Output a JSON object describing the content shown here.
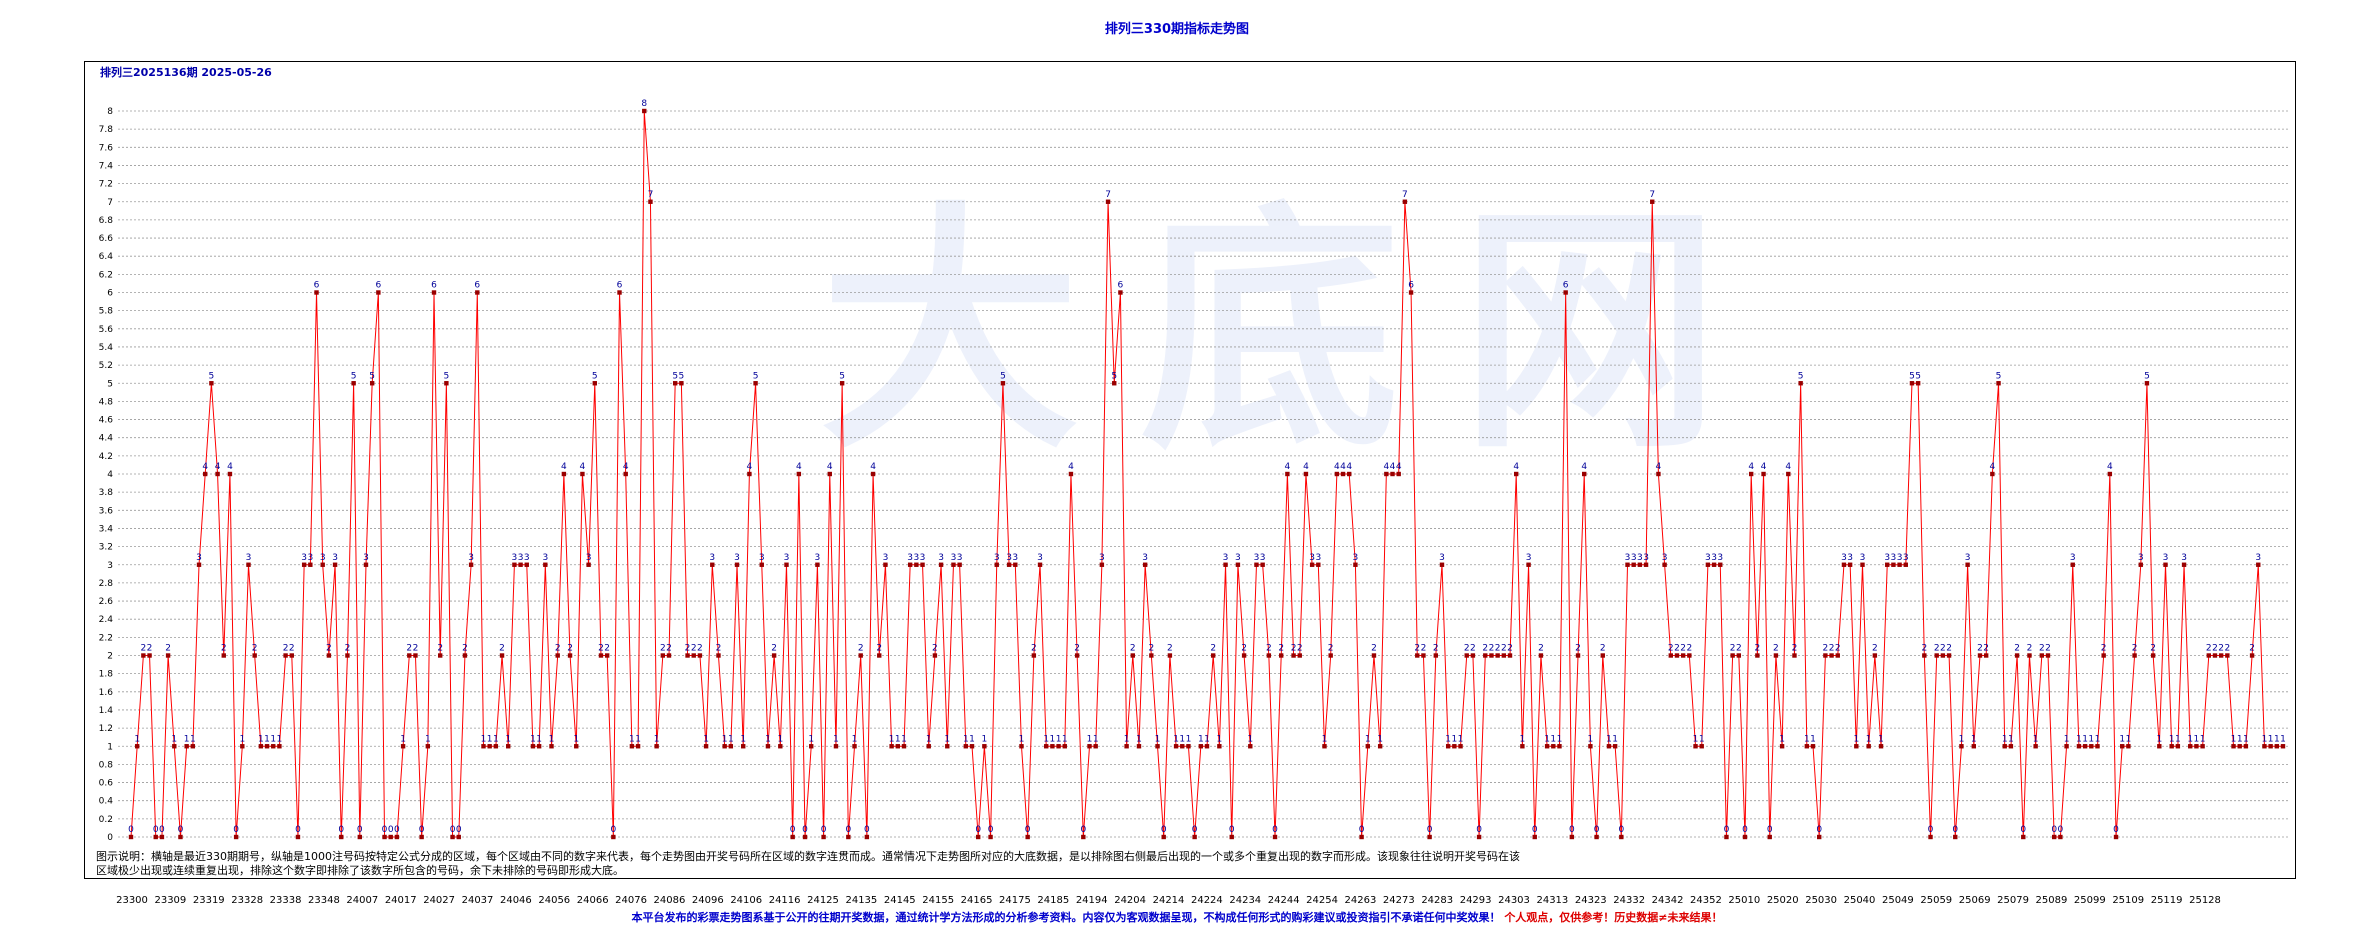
{
  "page": {
    "title": "排列三330期指标走势图",
    "subtitle": "排列三2025136期 2025-05-26",
    "description": "图示说明：横轴是最近330期期号，纵轴是1000注号码按特定公式分成的区域，每个区域由不同的数字来代表，每个走势图由开奖号码所在区域的数字连贯而成。通常情况下走势图所对应的大底数据，是以排除图右侧最后出现的一个或多个重复出现的数字而形成。该现象往往说明开奖号码在该区域极少出现或连续重复出现，排除这个数字即排除了该数字所包含的号码，余下未排除的号码即形成大底。",
    "disclaimer": "本平台发布的彩票走势图系基于公开的往期开奖数据，通过统计学方法形成的分析参考资料。内容仅为客观数据呈现，不构成任何形式的购彩建议或投资指引不承诺任何中奖效果！",
    "disclaimer_warning": "个人观点，仅供参考！历史数据≠未来结果！",
    "watermark": "大底网",
    "colors": {
      "line": "#ff0000",
      "point": "#990000",
      "value_label": "#000099",
      "grid": "#9a9a9a",
      "title": "#0000cc",
      "watermark": "#dfe6f8"
    }
  },
  "chart_data": {
    "type": "line",
    "title": "排列三330期指标走势图",
    "ylim": [
      0,
      8
    ],
    "y_step": 0.2,
    "grid": true,
    "legend": "none",
    "x_tick_labels": [
      "23300",
      "23309",
      "23319",
      "23328",
      "23338",
      "23348",
      "24007",
      "24017",
      "24027",
      "24037",
      "24046",
      "24056",
      "24066",
      "24076",
      "24086",
      "24096",
      "24106",
      "24116",
      "24125",
      "24135",
      "24145",
      "24155",
      "24165",
      "24175",
      "24185",
      "24194",
      "24204",
      "24214",
      "24224",
      "24234",
      "24244",
      "24254",
      "24263",
      "24273",
      "24283",
      "24293",
      "24303",
      "24313",
      "24323",
      "24332",
      "24342",
      "24352",
      "25010",
      "25020",
      "25030",
      "25040",
      "25049",
      "25059",
      "25069",
      "25079",
      "25089",
      "25099",
      "25109",
      "25119",
      "25128"
    ],
    "series": [
      {
        "values": [
          0,
          1,
          2,
          2,
          0,
          0,
          2,
          1,
          0,
          1,
          1,
          3,
          4,
          5,
          4,
          2,
          4,
          0,
          1,
          3,
          2,
          1,
          1,
          1,
          1,
          2,
          2,
          0,
          3,
          3,
          6,
          3,
          2,
          3,
          0,
          2,
          5,
          0,
          3,
          5,
          6,
          0,
          0,
          0,
          1,
          2,
          2,
          0,
          1,
          6,
          2,
          5,
          0,
          0,
          2,
          3,
          6,
          1,
          1,
          1,
          2,
          1,
          3,
          3,
          3,
          1,
          1,
          3,
          1,
          2,
          4,
          2,
          1,
          4,
          3,
          5,
          2,
          2,
          0,
          6,
          4,
          1,
          1,
          8,
          7,
          1,
          2,
          2,
          5,
          5,
          2,
          2,
          2,
          1,
          3,
          2,
          1,
          1,
          3,
          1,
          4,
          5,
          3,
          1,
          2,
          1,
          3,
          0,
          4,
          0,
          1,
          3,
          0,
          4,
          1,
          5,
          0,
          1,
          2,
          0,
          4,
          2,
          3,
          1,
          1,
          1,
          3,
          3,
          3,
          1,
          2,
          3,
          1,
          3,
          3,
          1,
          1,
          0,
          1,
          0,
          3,
          5,
          3,
          3,
          1,
          0,
          2,
          3,
          1,
          1,
          1,
          1,
          4,
          2,
          0,
          1,
          1,
          3,
          7,
          5,
          6,
          1,
          2,
          1,
          3,
          2,
          1,
          0,
          2,
          1,
          1,
          1,
          0,
          1,
          1,
          2,
          1,
          3,
          0,
          3,
          2,
          1,
          3,
          3,
          2,
          0,
          2,
          4,
          2,
          2,
          4,
          3,
          3,
          1,
          2,
          4,
          4,
          4,
          3,
          0,
          1,
          2,
          1,
          4,
          4,
          4,
          7,
          6,
          2,
          2,
          0,
          2,
          3,
          1,
          1,
          1,
          2,
          2,
          0,
          2,
          2,
          2,
          2,
          2,
          4,
          1,
          3,
          0,
          2,
          1,
          1,
          1,
          6,
          0,
          2,
          4,
          1,
          0,
          2,
          1,
          1,
          0,
          3,
          3,
          3,
          3,
          7,
          4,
          3,
          2,
          2,
          2,
          2,
          1,
          1,
          3,
          3,
          3,
          0,
          2,
          2,
          0,
          4,
          2,
          4,
          0,
          2,
          1,
          4,
          2,
          5,
          1,
          1,
          0,
          2,
          2,
          2,
          3,
          3,
          1,
          3,
          1,
          2,
          1,
          3,
          3,
          3,
          3,
          5,
          5,
          2,
          0,
          2,
          2,
          2,
          0,
          1,
          3,
          1,
          2,
          2,
          4,
          5,
          1,
          1,
          2,
          0,
          2,
          1,
          2,
          2,
          0,
          0,
          1,
          3,
          1,
          1,
          1,
          1,
          2,
          4,
          0,
          1,
          1,
          2,
          3,
          5,
          2,
          1,
          3,
          1,
          1,
          3,
          1,
          1,
          1,
          2,
          2,
          2,
          2,
          1,
          1,
          1,
          2,
          3,
          1,
          1,
          1,
          1
        ]
      }
    ]
  }
}
